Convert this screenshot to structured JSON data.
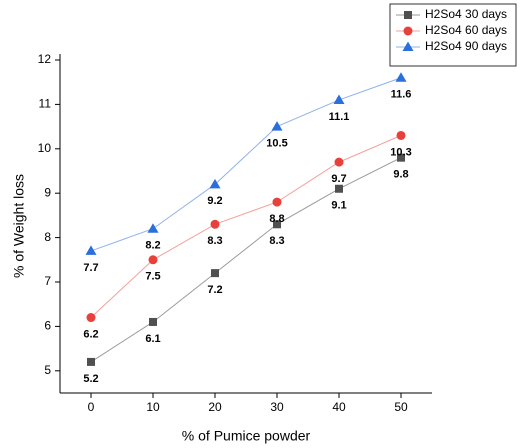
{
  "chart_data": {
    "type": "line",
    "x_label": "% of Pumice powder",
    "y_label": "% of Weight loss",
    "x": [
      0,
      10,
      20,
      30,
      40,
      50
    ],
    "series": [
      {
        "name": "H2So4 30 days",
        "color": "#505050",
        "line_color": "#9a9a9a",
        "marker": "square",
        "values": [
          5.2,
          6.1,
          7.2,
          8.3,
          9.1,
          9.8
        ]
      },
      {
        "name": "H2So4 60 days",
        "color": "#e8413c",
        "line_color": "#f4a09c",
        "marker": "circle",
        "values": [
          6.2,
          7.5,
          8.3,
          8.8,
          9.7,
          10.3
        ]
      },
      {
        "name": "H2So4 90 days",
        "color": "#2a6fdb",
        "line_color": "#8fb2ec",
        "marker": "triangle",
        "values": [
          7.7,
          8.2,
          9.2,
          10.5,
          11.1,
          11.6
        ]
      }
    ],
    "xlim": [
      -5,
      55
    ],
    "xticks": [
      0,
      10,
      20,
      30,
      40,
      50
    ],
    "ylim": [
      4.5,
      12
    ],
    "yticks": [
      5,
      6,
      7,
      8,
      9,
      10,
      11,
      12
    ],
    "data_labels": true,
    "legend": "upper right"
  }
}
